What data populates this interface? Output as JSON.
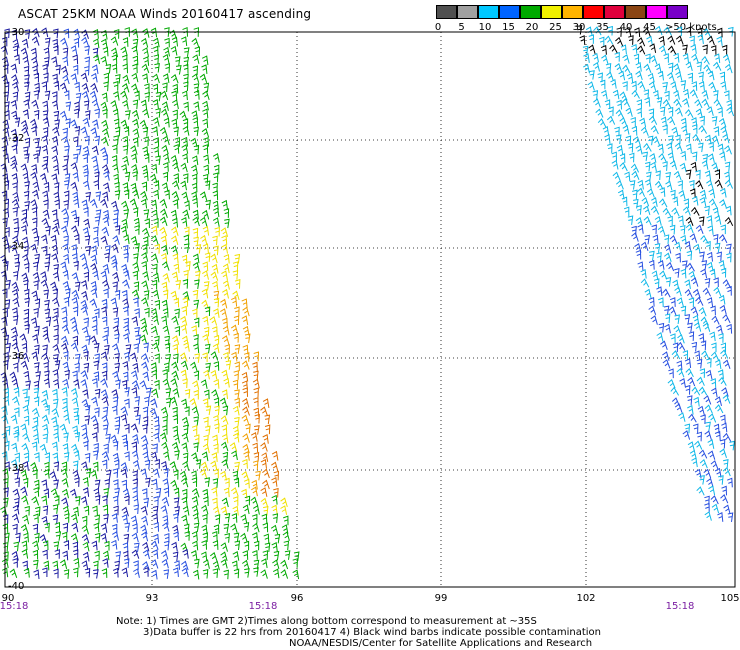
{
  "title": "ASCAT 25KM NOAA Winds 20160417 ascending",
  "colorbar": {
    "swatches": [
      "#505050",
      "#a0a0a0",
      "#00c8ff",
      "#0064ff",
      "#00aa00",
      "#f0f000",
      "#ffb400",
      "#ff0000",
      "#e0003c",
      "#8b4513",
      "#ff00ff",
      "#7800c8"
    ],
    "labels": [
      "0",
      "5",
      "10",
      "15",
      "20",
      "25",
      "30",
      "35",
      "40",
      "45",
      ">50 knots"
    ]
  },
  "latitudes": [
    "-30",
    "-32",
    "-34",
    "-36",
    "-38",
    "-40"
  ],
  "longitudes": [
    "90",
    "93",
    "96",
    "99",
    "102",
    "105"
  ],
  "times": [
    "15:18",
    "15:18",
    "15:18"
  ],
  "notes": {
    "line1": "Note: 1) Times are GMT 2)Times along bottom correspond to measurement at ~35S",
    "line2": "3)Data buffer is 22 hrs from 20160417 4) Black wind barbs indicate possible contamination",
    "line3": "NOAA/NESDIS/Center for Satellite Applications and Research"
  },
  "wind_colors": {
    "navy": "#1a1aa0",
    "blue": "#2850e0",
    "cyan": "#10b8e8",
    "green": "#00a800",
    "yellow": "#f0e000",
    "orange": "#f0a000",
    "dark_orange": "#e07000",
    "black": "#000000"
  }
}
